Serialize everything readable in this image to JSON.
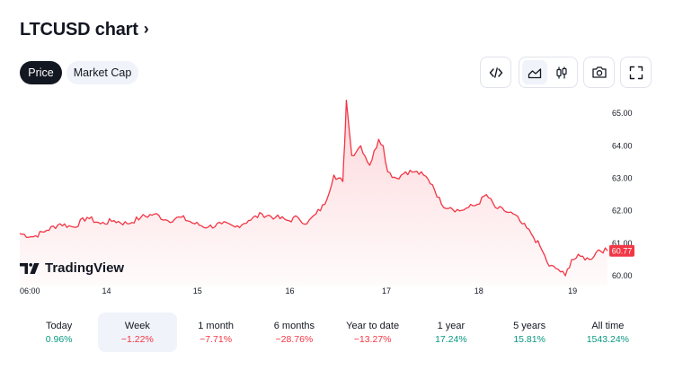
{
  "header": {
    "title": "LTCUSD chart",
    "chevron": "›"
  },
  "tabs": [
    {
      "label": "Price",
      "active": true
    },
    {
      "label": "Market Cap",
      "active": false
    }
  ],
  "toolbar": {
    "embed_icon": "code-icon",
    "line_chart_icon": "area-chart-icon",
    "candle_chart_icon": "candlestick-icon",
    "snapshot_icon": "camera-icon",
    "fullscreen_icon": "fullscreen-icon"
  },
  "watermark": {
    "text": "TradingView"
  },
  "colors": {
    "line": "#f23645",
    "positive": "#089981",
    "negative": "#f23645",
    "dark": "#131722"
  },
  "chart_data": {
    "type": "area",
    "x_tick_labels": [
      "06:00",
      "14",
      "15",
      "16",
      "17",
      "18",
      "19"
    ],
    "y_tick_labels": [
      "60.00",
      "61.00",
      "62.00",
      "63.00",
      "64.00",
      "65.00"
    ],
    "ylim": [
      59.7,
      65.5
    ],
    "last_price_label": "60.77",
    "series": [
      {
        "x": [
          0,
          0.15,
          0.3,
          0.45,
          0.6,
          0.75,
          0.9,
          1.05,
          1.2,
          1.35,
          1.5,
          1.65,
          1.8,
          1.95,
          2.1,
          2.25,
          2.4,
          2.55,
          2.7,
          2.85,
          3.0,
          3.1,
          3.2,
          3.3,
          3.4,
          3.5,
          3.6,
          3.62,
          3.64,
          3.7,
          3.8,
          3.9,
          4.0,
          4.05,
          4.1,
          4.2,
          4.3,
          4.4,
          4.5,
          4.6,
          4.7,
          4.8,
          4.9,
          5.0,
          5.1,
          5.2,
          5.3,
          5.4,
          5.5,
          5.6,
          5.7,
          5.8,
          5.9,
          6.0,
          6.08,
          6.15,
          6.25,
          6.35,
          6.45,
          6.55
        ],
        "values": [
          61.3,
          61.2,
          61.4,
          61.6,
          61.5,
          61.8,
          61.6,
          61.7,
          61.6,
          61.8,
          61.9,
          61.7,
          61.8,
          61.6,
          61.5,
          61.6,
          61.5,
          61.7,
          61.9,
          61.8,
          61.7,
          61.8,
          61.6,
          61.9,
          62.2,
          63.1,
          62.9,
          64.0,
          65.4,
          63.7,
          64.0,
          63.4,
          64.2,
          64.0,
          63.2,
          63.0,
          63.2,
          63.2,
          63.1,
          62.8,
          62.2,
          62.1,
          62.0,
          62.1,
          62.2,
          62.5,
          62.1,
          62.0,
          61.9,
          61.6,
          61.3,
          60.9,
          60.3,
          60.2,
          60.0,
          60.5,
          60.6,
          60.5,
          60.8,
          60.77
        ]
      }
    ],
    "grid": false
  },
  "ranges": [
    {
      "label": "Today",
      "value": "0.96%",
      "dir": "pos",
      "active": false
    },
    {
      "label": "Week",
      "value": "−1.22%",
      "dir": "neg",
      "active": true
    },
    {
      "label": "1 month",
      "value": "−7.71%",
      "dir": "neg",
      "active": false
    },
    {
      "label": "6 months",
      "value": "−28.76%",
      "dir": "neg",
      "active": false
    },
    {
      "label": "Year to date",
      "value": "−13.27%",
      "dir": "neg",
      "active": false
    },
    {
      "label": "1 year",
      "value": "17.24%",
      "dir": "pos",
      "active": false
    },
    {
      "label": "5 years",
      "value": "15.81%",
      "dir": "pos",
      "active": false
    },
    {
      "label": "All time",
      "value": "1543.24%",
      "dir": "pos",
      "active": false
    }
  ]
}
